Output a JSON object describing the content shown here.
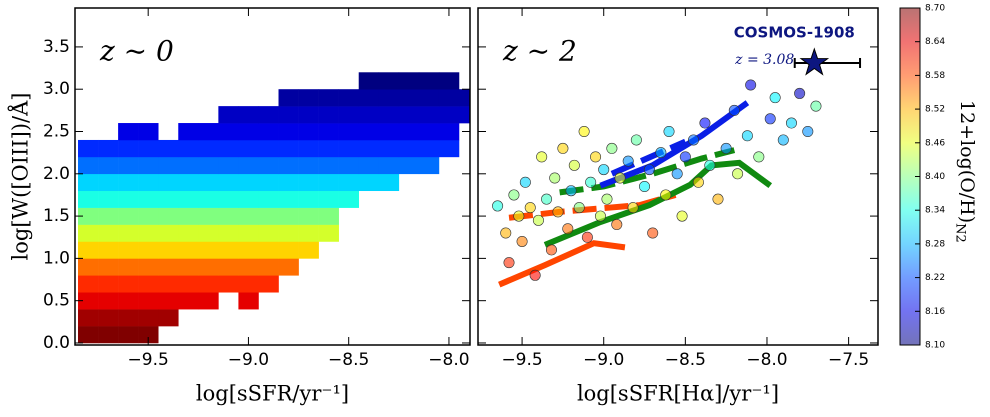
{
  "chart_data": [
    {
      "type": "heatmap",
      "panel_label": "z ∼ 0",
      "xlabel": "log[sSFR/yr⁻¹]",
      "ylabel": "log[W([OIII])/Å]",
      "x": [
        -9.8,
        -9.7,
        -9.6,
        -9.5,
        -9.4,
        -9.3,
        -9.2,
        -9.1,
        -9.0,
        -8.9,
        -8.8,
        -8.7,
        -8.6,
        -8.5,
        -8.4,
        -8.3,
        -8.2,
        -8.1,
        -8.0,
        -7.9
      ],
      "y": [
        0.1,
        0.3,
        0.5,
        0.7,
        0.9,
        1.1,
        1.3,
        1.5,
        1.7,
        1.9,
        2.1,
        2.3,
        2.5,
        2.7,
        2.9,
        3.1
      ],
      "z": [
        [
          8.7,
          8.7,
          8.7,
          8.7,
          null,
          null,
          null,
          null,
          null,
          null,
          null,
          null,
          null,
          null,
          null,
          null,
          null,
          null,
          null,
          null
        ],
        [
          8.68,
          8.68,
          8.68,
          8.68,
          8.68,
          null,
          null,
          null,
          null,
          null,
          null,
          null,
          null,
          null,
          null,
          null,
          null,
          null,
          null,
          null
        ],
        [
          8.64,
          8.64,
          8.64,
          8.64,
          8.64,
          8.64,
          8.64,
          null,
          8.64,
          null,
          null,
          null,
          null,
          null,
          null,
          null,
          null,
          null,
          null,
          null
        ],
        [
          8.6,
          8.6,
          8.6,
          8.6,
          8.6,
          8.6,
          8.6,
          8.6,
          8.6,
          8.6,
          null,
          null,
          null,
          null,
          null,
          null,
          null,
          null,
          null,
          null
        ],
        [
          8.56,
          8.56,
          8.56,
          8.56,
          8.56,
          8.56,
          8.56,
          8.56,
          8.56,
          8.56,
          8.56,
          null,
          null,
          null,
          null,
          null,
          null,
          null,
          null,
          null
        ],
        [
          8.5,
          8.5,
          8.5,
          8.5,
          8.5,
          8.5,
          8.5,
          8.5,
          8.5,
          8.5,
          8.5,
          8.5,
          null,
          null,
          null,
          null,
          null,
          null,
          null,
          null
        ],
        [
          8.45,
          8.45,
          8.45,
          8.45,
          8.45,
          8.45,
          8.45,
          8.45,
          8.45,
          8.45,
          8.45,
          8.45,
          8.45,
          null,
          null,
          null,
          null,
          null,
          null,
          null
        ],
        [
          8.4,
          8.4,
          8.4,
          8.4,
          8.4,
          8.4,
          8.4,
          8.4,
          8.4,
          8.4,
          8.4,
          8.4,
          8.4,
          null,
          null,
          null,
          null,
          null,
          null,
          null
        ],
        [
          8.34,
          8.34,
          8.34,
          8.34,
          8.34,
          8.34,
          8.34,
          8.34,
          8.34,
          8.34,
          8.34,
          8.34,
          8.34,
          8.34,
          null,
          null,
          null,
          null,
          null,
          null
        ],
        [
          8.3,
          8.3,
          8.3,
          8.3,
          8.3,
          8.3,
          8.3,
          8.3,
          8.3,
          8.3,
          8.3,
          8.3,
          8.3,
          8.3,
          8.3,
          8.3,
          null,
          null,
          null,
          null
        ],
        [
          8.24,
          8.24,
          8.24,
          8.24,
          8.24,
          8.24,
          8.24,
          8.24,
          8.24,
          8.24,
          8.24,
          8.24,
          8.24,
          8.24,
          8.24,
          8.24,
          8.24,
          8.24,
          null,
          null
        ],
        [
          8.2,
          8.2,
          8.2,
          8.2,
          8.2,
          8.2,
          8.2,
          8.2,
          8.2,
          8.2,
          8.2,
          8.2,
          8.2,
          8.2,
          8.2,
          8.2,
          8.2,
          8.2,
          8.2,
          null
        ],
        [
          null,
          null,
          8.16,
          8.16,
          null,
          8.16,
          8.16,
          8.16,
          8.16,
          8.16,
          8.16,
          8.16,
          8.16,
          8.16,
          8.16,
          8.16,
          8.16,
          8.16,
          8.16,
          null
        ],
        [
          null,
          null,
          null,
          null,
          null,
          null,
          null,
          8.14,
          8.14,
          8.14,
          8.14,
          8.14,
          8.14,
          8.14,
          8.14,
          8.14,
          8.14,
          8.14,
          8.14,
          8.14
        ],
        [
          null,
          null,
          null,
          null,
          null,
          null,
          null,
          null,
          null,
          null,
          8.12,
          8.12,
          8.12,
          8.12,
          8.12,
          8.12,
          8.12,
          8.12,
          8.12,
          8.12
        ],
        [
          null,
          null,
          null,
          null,
          null,
          null,
          null,
          null,
          null,
          null,
          null,
          null,
          null,
          null,
          8.1,
          8.1,
          8.1,
          8.1,
          8.1,
          null
        ]
      ],
      "xlim": [
        -9.865,
        -7.895
      ],
      "ylim": [
        -0.024,
        3.96
      ],
      "xticks": [
        {
          "value": -9.5,
          "label": "−9.5"
        },
        {
          "value": -9.0,
          "label": "−9.0"
        },
        {
          "value": -8.5,
          "label": "−8.5"
        },
        {
          "value": -8.0,
          "label": "−8.0"
        }
      ],
      "yticks": [
        {
          "value": 0,
          "label": "0.0"
        },
        0.5,
        {
          "value": 1,
          "label": "1.0"
        },
        1.5,
        {
          "value": 2,
          "label": "2.0"
        },
        2.5,
        {
          "value": 3,
          "label": "3.0"
        },
        3.5
      ]
    },
    {
      "type": "scatter",
      "panel_label": "z ∼ 2",
      "xlabel": "log[sSFR[Hα]/yr⁻¹]",
      "x": [
        -9.65,
        -9.6,
        -9.58,
        -9.55,
        -9.52,
        -9.5,
        -9.48,
        -9.45,
        -9.42,
        -9.4,
        -9.38,
        -9.35,
        -9.32,
        -9.3,
        -9.28,
        -9.25,
        -9.22,
        -9.2,
        -9.18,
        -9.15,
        -9.12,
        -9.1,
        -9.08,
        -9.05,
        -9.02,
        -9.0,
        -8.98,
        -8.95,
        -8.92,
        -8.9,
        -8.85,
        -8.82,
        -8.8,
        -8.75,
        -8.72,
        -8.7,
        -8.65,
        -8.62,
        -8.6,
        -8.55,
        -8.52,
        -8.5,
        -8.45,
        -8.42,
        -8.38,
        -8.35,
        -8.3,
        -8.25,
        -8.2,
        -8.18,
        -8.12,
        -8.1,
        -8.05,
        -7.98,
        -7.95,
        -7.9,
        -7.85,
        -7.8,
        -7.75,
        -7.7
      ],
      "y": [
        1.62,
        1.3,
        0.95,
        1.75,
        1.5,
        1.2,
        1.9,
        1.6,
        0.8,
        1.45,
        2.2,
        1.7,
        1.1,
        1.95,
        1.55,
        2.3,
        1.35,
        1.8,
        2.1,
        1.6,
        2.5,
        1.25,
        1.9,
        2.2,
        1.5,
        2.05,
        1.7,
        2.3,
        1.4,
        1.95,
        2.15,
        1.6,
        2.4,
        1.85,
        2.05,
        1.3,
        2.25,
        1.75,
        2.5,
        2.0,
        1.5,
        2.2,
        2.4,
        1.9,
        2.6,
        2.1,
        1.7,
        2.3,
        2.75,
        2.0,
        2.45,
        3.05,
        2.2,
        2.65,
        2.9,
        2.4,
        2.6,
        2.95,
        2.5,
        2.8
      ],
      "z": [
        8.34,
        8.52,
        8.6,
        8.4,
        8.46,
        8.55,
        8.3,
        8.5,
        8.62,
        8.44,
        8.46,
        8.36,
        8.58,
        8.42,
        8.52,
        8.5,
        8.56,
        8.28,
        8.45,
        8.4,
        8.48,
        8.6,
        8.35,
        8.5,
        8.44,
        8.3,
        8.42,
        8.4,
        8.56,
        8.46,
        8.26,
        8.5,
        8.38,
        8.32,
        8.22,
        8.58,
        8.28,
        8.48,
        8.3,
        8.26,
        8.46,
        8.2,
        8.24,
        8.5,
        8.18,
        8.34,
        8.52,
        8.26,
        8.22,
        8.44,
        8.3,
        8.16,
        8.4,
        8.2,
        8.32,
        8.28,
        8.3,
        8.14,
        8.26,
        8.38
      ],
      "lines": [
        {
          "color": "#ff4500",
          "dash": false,
          "x": [
            -9.64,
            -9.36,
            -9.06,
            -8.87
          ],
          "y": [
            0.69,
            0.92,
            1.18,
            1.13
          ]
        },
        {
          "color": "#ff4500",
          "dash": true,
          "x": [
            -9.58,
            -9.27,
            -8.78,
            -8.56
          ],
          "y": [
            1.48,
            1.55,
            1.63,
            1.75
          ]
        },
        {
          "color": "#108a10",
          "dash": false,
          "x": [
            -9.36,
            -9.02,
            -8.72,
            -8.47,
            -8.34,
            -8.17,
            -7.98
          ],
          "y": [
            1.16,
            1.43,
            1.63,
            1.87,
            2.1,
            2.13,
            1.86
          ]
        },
        {
          "color": "#108a10",
          "dash": true,
          "x": [
            -9.27,
            -9.0,
            -8.7,
            -8.4,
            -8.2
          ],
          "y": [
            1.78,
            1.85,
            2.0,
            2.18,
            2.28
          ]
        },
        {
          "color": "#0a1ee6",
          "dash": false,
          "x": [
            -9.02,
            -8.7,
            -8.4,
            -8.12
          ],
          "y": [
            1.86,
            2.1,
            2.45,
            2.84
          ]
        },
        {
          "color": "#0a1ee6",
          "dash": true,
          "x": [
            -8.95,
            -8.5
          ],
          "y": [
            2.0,
            2.38
          ]
        }
      ],
      "star": {
        "name": "COSMOS-1908",
        "label": "z = 3.08",
        "x": -7.71,
        "y": 3.31,
        "xerr": [
          0.12,
          0.28
        ],
        "color": "#0d1680"
      },
      "xlim": [
        -9.77,
        -7.32
      ],
      "ylim": [
        -0.024,
        3.96
      ],
      "xticks": [
        {
          "value": -9.5,
          "label": "−9.5"
        },
        {
          "value": -9.0,
          "label": "−9.0"
        },
        {
          "value": -8.5,
          "label": "−8.5"
        },
        {
          "value": -8.0,
          "label": "−8.0"
        },
        {
          "value": -7.5,
          "label": "−7.5"
        }
      ],
      "yticks": [
        0,
        0.5,
        1,
        1.5,
        2,
        2.5,
        3,
        3.5
      ],
      "colorbar": {
        "label": "12+log(O/H)",
        "label_sub": "N2",
        "lim": [
          8.1,
          8.7
        ],
        "ticks": [
          {
            "value": 8.1,
            "label": "8.10"
          },
          8.16,
          8.22,
          8.28,
          8.34,
          {
            "value": 8.4,
            "label": "8.40"
          },
          8.46,
          8.52,
          8.58,
          8.64,
          {
            "value": 8.7,
            "label": "8.70"
          }
        ]
      }
    }
  ]
}
